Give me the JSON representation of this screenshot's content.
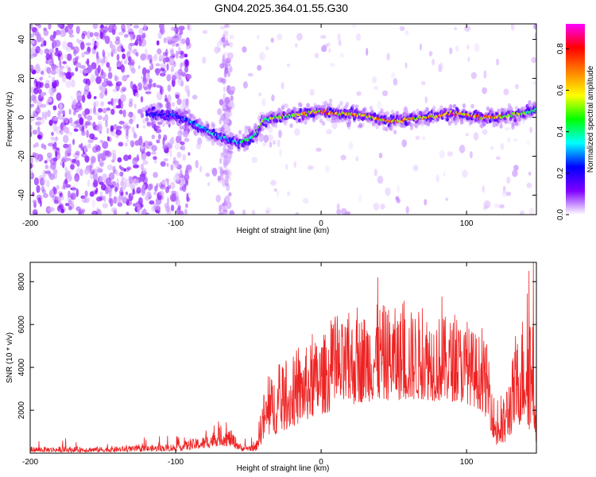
{
  "title": "GN04.2025.364.01.55.G30",
  "chart_data": [
    {
      "type": "heatmap",
      "name": "spectrogram",
      "xlabel": "Height of straight line (km)",
      "ylabel": "Frequency (Hz)",
      "xlim": [
        -200,
        148
      ],
      "ylim": [
        -50,
        48
      ],
      "xticks": [
        -200,
        -100,
        0,
        100
      ],
      "yticks": [
        -40,
        -20,
        0,
        20,
        40
      ],
      "colorbar": {
        "label": "Normalized spectral amplitude",
        "range": [
          0.0,
          0.92
        ],
        "ticks": [
          0.0,
          0.2,
          0.4,
          0.6,
          0.8
        ],
        "tick_labels": [
          "0.0",
          "0.2",
          "0.4",
          "0.6",
          "0.8"
        ],
        "colors": [
          "#ffffff",
          "#8000ff",
          "#0000ff",
          "#00ffff",
          "#00ff00",
          "#ffff00",
          "#ff8000",
          "#ff0000",
          "#ff00ff"
        ]
      },
      "ridge": {
        "x": [
          -120,
          -100,
          -90,
          -80,
          -70,
          -60,
          -55,
          -50,
          -45,
          -40,
          -30,
          -20,
          -10,
          0,
          10,
          20,
          30,
          40,
          50,
          60,
          70,
          80,
          90,
          100,
          110,
          120,
          130,
          140,
          148
        ],
        "freq": [
          2,
          1,
          -2,
          -6,
          -10,
          -12,
          -13,
          -11,
          -9,
          -2,
          0,
          1,
          2,
          3,
          2,
          2,
          1,
          -1,
          -2,
          -1,
          0,
          1,
          2,
          1,
          0,
          0,
          1,
          2,
          4
        ],
        "peak_amplitude": [
          0.25,
          0.3,
          0.35,
          0.4,
          0.4,
          0.4,
          0.45,
          0.5,
          0.55,
          0.6,
          0.65,
          0.7,
          0.75,
          0.8,
          0.85,
          0.85,
          0.8,
          0.8,
          0.75,
          0.75,
          0.8,
          0.85,
          0.9,
          0.9,
          0.85,
          0.8,
          0.7,
          0.6,
          0.5
        ]
      },
      "noise_region": {
        "x_start": -200,
        "x_end": -100
      }
    },
    {
      "type": "line",
      "name": "snr",
      "xlabel": "Height of straight line (km)",
      "ylabel": "SNR (10 * v/v)",
      "xlim": [
        -200,
        148
      ],
      "ylim": [
        0,
        8900
      ],
      "xticks": [
        -200,
        -100,
        0,
        100
      ],
      "yticks": [
        2000,
        4000,
        6000,
        8000
      ],
      "color": "#ee2222",
      "envelope": {
        "x": [
          -200,
          -150,
          -120,
          -100,
          -80,
          -70,
          -62,
          -55,
          -45,
          -40,
          -35,
          -30,
          -20,
          -10,
          0,
          10,
          20,
          30,
          40,
          50,
          60,
          70,
          80,
          90,
          100,
          110,
          115,
          120,
          125,
          130,
          135,
          140,
          145,
          148
        ],
        "low": [
          50,
          50,
          80,
          100,
          200,
          350,
          300,
          100,
          100,
          500,
          800,
          900,
          1200,
          1500,
          1800,
          2000,
          2200,
          2400,
          2400,
          2500,
          2400,
          2500,
          2400,
          2400,
          2300,
          2000,
          1500,
          300,
          200,
          800,
          1200,
          1500,
          800,
          500
        ],
        "high": [
          300,
          300,
          350,
          450,
          800,
          1200,
          1100,
          400,
          400,
          2800,
          3500,
          3800,
          4200,
          5000,
          5500,
          6000,
          6300,
          6600,
          7000,
          6800,
          6700,
          6700,
          6500,
          6300,
          6000,
          5500,
          5000,
          2000,
          2500,
          4000,
          5500,
          7000,
          7500,
          6500
        ]
      },
      "spikes": [
        {
          "x": 39,
          "value": 8200
        },
        {
          "x": 83,
          "value": 7300
        },
        {
          "x": 146,
          "value": 8900
        },
        {
          "x": 143,
          "value": 8500
        }
      ]
    }
  ]
}
